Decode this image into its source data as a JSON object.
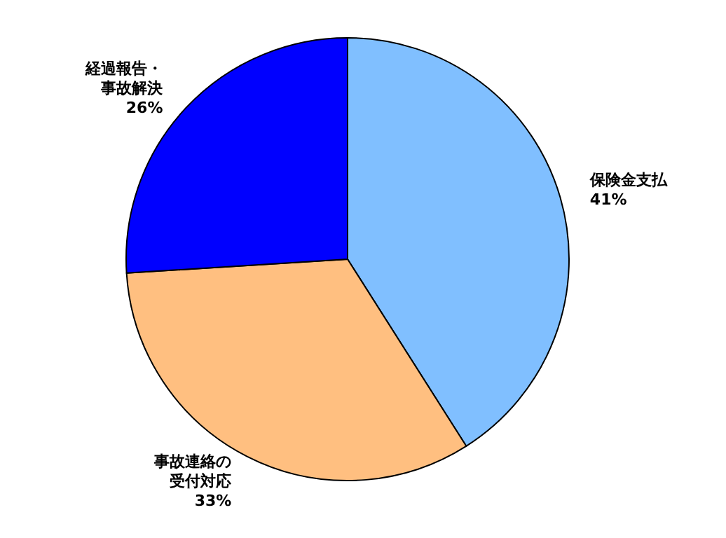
{
  "chart_data": {
    "type": "pie",
    "categories": [
      "保険金支払",
      "事故連絡の受付対応",
      "経過報告・事故解決"
    ],
    "values": [
      41,
      33,
      26
    ],
    "value_labels": [
      "41%",
      "33%",
      "26%"
    ],
    "colors": [
      "#80bfff",
      "#ffbf80",
      "#0000ff"
    ],
    "data_labels": true,
    "legend": false
  }
}
